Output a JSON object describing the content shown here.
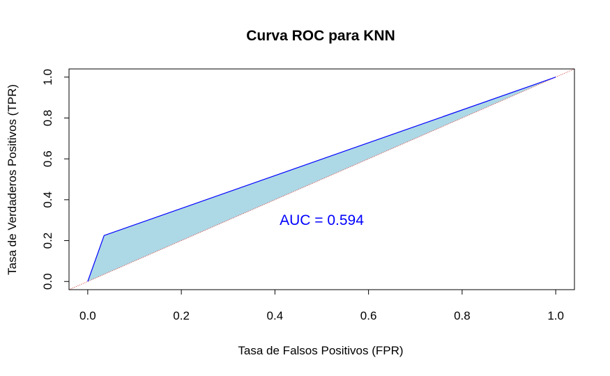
{
  "chart_data": {
    "type": "line",
    "title": "Curva ROC para KNN",
    "xlabel": "Tasa de Falsos Positivos (FPR)",
    "ylabel": "Tasa de Verdaderos Positivos (TPR)",
    "xlim": [
      -0.04,
      1.04
    ],
    "ylim": [
      -0.04,
      1.04
    ],
    "x_ticks": [
      0.0,
      0.2,
      0.4,
      0.6,
      0.8,
      1.0
    ],
    "y_ticks": [
      0.0,
      0.2,
      0.4,
      0.6,
      0.8,
      1.0
    ],
    "x_tick_labels": [
      "0.0",
      "0.2",
      "0.4",
      "0.6",
      "0.8",
      "1.0"
    ],
    "y_tick_labels": [
      "0.0",
      "0.2",
      "0.4",
      "0.6",
      "0.8",
      "1.0"
    ],
    "grid": false,
    "legend": "none",
    "series": [
      {
        "x": [
          0.0,
          0.035,
          1.0
        ],
        "y": [
          0.0,
          0.225,
          1.0
        ],
        "color": "#0000ff"
      }
    ],
    "reference_line": {
      "intercept": 0,
      "slope": 1,
      "color": "#d9534f",
      "style": "dotted"
    },
    "fill_color": "#add8e6",
    "annotation": {
      "text": "AUC = 0.594",
      "x": 0.5,
      "y": 0.3,
      "color": "#0000ff"
    }
  }
}
